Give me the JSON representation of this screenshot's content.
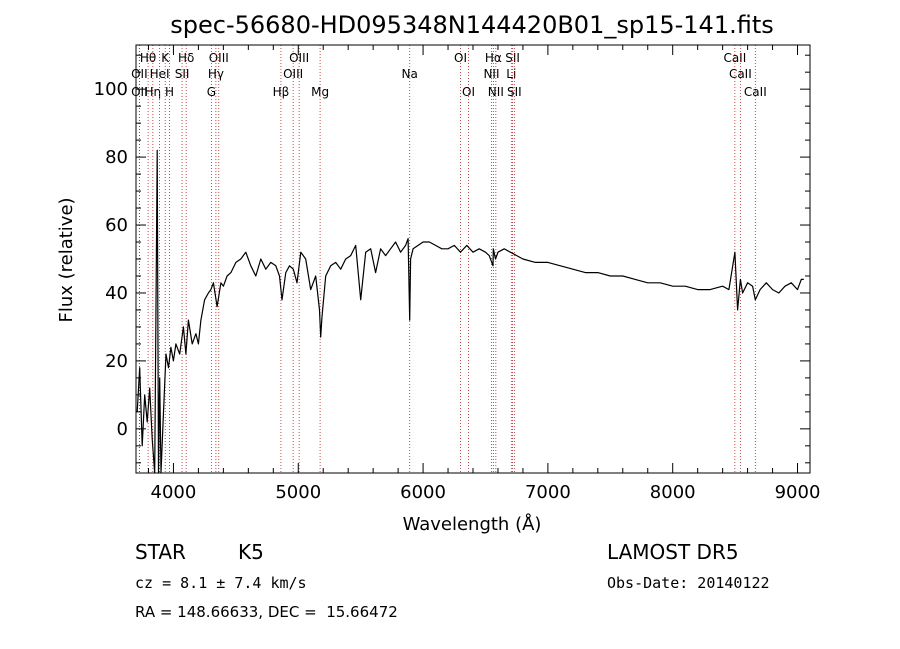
{
  "chart_data": {
    "type": "line",
    "title": "spec-56680-HD095348N144420B01_sp15-141.fits",
    "xlabel": "Wavelength (Å)",
    "ylabel": "Flux (relative)",
    "xlim": [
      3700,
      9100
    ],
    "ylim": [
      -13,
      113
    ],
    "xticks": [
      4000,
      5000,
      6000,
      7000,
      8000,
      9000
    ],
    "yticks": [
      0,
      20,
      40,
      60,
      80,
      100
    ],
    "grid": false,
    "colors": {
      "spectrum": "#000000",
      "lines": "#b22222"
    },
    "series": [
      {
        "x": [
          3710,
          3730,
          3750,
          3770,
          3790,
          3810,
          3830,
          3850,
          3870,
          3880,
          3890,
          3900,
          3920,
          3940,
          3960,
          3980,
          4000,
          4020,
          4050,
          4080,
          4100,
          4120,
          4150,
          4180,
          4200,
          4220,
          4250,
          4280,
          4300,
          4320,
          4350,
          4380,
          4400,
          4430,
          4460,
          4500,
          4540,
          4580,
          4620,
          4660,
          4700,
          4740,
          4780,
          4820,
          4850,
          4870,
          4900,
          4930,
          4960,
          4990,
          5020,
          5060,
          5100,
          5140,
          5170,
          5180,
          5190,
          5220,
          5260,
          5300,
          5340,
          5380,
          5420,
          5460,
          5500,
          5540,
          5580,
          5620,
          5660,
          5700,
          5740,
          5780,
          5820,
          5860,
          5880,
          5893,
          5900,
          5920,
          5960,
          6000,
          6050,
          6100,
          6150,
          6200,
          6250,
          6300,
          6350,
          6400,
          6450,
          6500,
          6530,
          6560,
          6563,
          6580,
          6600,
          6650,
          6700,
          6750,
          6800,
          6900,
          7000,
          7100,
          7200,
          7300,
          7400,
          7500,
          7600,
          7700,
          7800,
          7900,
          8000,
          8100,
          8200,
          8300,
          8400,
          8450,
          8498,
          8520,
          8542,
          8560,
          8600,
          8640,
          8662,
          8700,
          8750,
          8800,
          8850,
          8900,
          8950,
          9000,
          9030,
          9050
        ],
        "y": [
          5,
          18,
          -5,
          10,
          2,
          12,
          -3,
          -13,
          82,
          -13,
          15,
          -13,
          5,
          22,
          18,
          24,
          20,
          25,
          22,
          30,
          22,
          32,
          25,
          28,
          25,
          32,
          38,
          40,
          41,
          43,
          36,
          43,
          42,
          45,
          46,
          49,
          50,
          52,
          48,
          45,
          50,
          47,
          49,
          48,
          45,
          38,
          46,
          48,
          47,
          43,
          52,
          50,
          41,
          45,
          35,
          27,
          33,
          45,
          48,
          49,
          47,
          50,
          51,
          54,
          38,
          52,
          53,
          46,
          53,
          51,
          53,
          55,
          52,
          54,
          56,
          32,
          50,
          53,
          54,
          55,
          55,
          54,
          53,
          53,
          54,
          52,
          54,
          52,
          53,
          52,
          51,
          48,
          53,
          50,
          52,
          53,
          52,
          51,
          50,
          49,
          49,
          48,
          47,
          46,
          46,
          45,
          45,
          44,
          43,
          43,
          42,
          42,
          41,
          41,
          42,
          41,
          52,
          35,
          44,
          40,
          43,
          42,
          38,
          41,
          43,
          41,
          40,
          42,
          43,
          41,
          44,
          44
        ]
      }
    ],
    "spectral_lines": [
      {
        "label": "Hθ",
        "x": 3797,
        "row": 1
      },
      {
        "label": "OII",
        "x": 3727,
        "row": 2
      },
      {
        "label": "OII",
        "x": 3727,
        "row": 3
      },
      {
        "label": "Hη",
        "x": 3835,
        "row": 3
      },
      {
        "label": "K",
        "x": 3934,
        "row": 1
      },
      {
        "label": "HeI",
        "x": 3889,
        "row": 2
      },
      {
        "label": "H",
        "x": 3969,
        "row": 3
      },
      {
        "label": "Hδ",
        "x": 4102,
        "row": 1
      },
      {
        "label": "SII",
        "x": 4069,
        "row": 2
      },
      {
        "label": "OIII",
        "x": 4363,
        "row": 1
      },
      {
        "label": "Hγ",
        "x": 4340,
        "row": 2
      },
      {
        "label": "G",
        "x": 4304,
        "row": 3
      },
      {
        "label": "Hβ",
        "x": 4861,
        "row": 3
      },
      {
        "label": "OIII",
        "x": 5007,
        "row": 1
      },
      {
        "label": "OIII",
        "x": 4959,
        "row": 2
      },
      {
        "label": "Mg",
        "x": 5175,
        "row": 3
      },
      {
        "label": "Na",
        "x": 5893,
        "row": 2
      },
      {
        "label": "OI",
        "x": 6300,
        "row": 1
      },
      {
        "label": "OI",
        "x": 6364,
        "row": 3
      },
      {
        "label": "Hα",
        "x": 6563,
        "row": 1
      },
      {
        "label": "NII",
        "x": 6548,
        "row": 2
      },
      {
        "label": "NII",
        "x": 6583,
        "row": 3
      },
      {
        "label": "SII",
        "x": 6717,
        "row": 1
      },
      {
        "label": "Li",
        "x": 6707,
        "row": 2
      },
      {
        "label": "SII",
        "x": 6731,
        "row": 3
      },
      {
        "label": "CaII",
        "x": 8498,
        "row": 1
      },
      {
        "label": "CaII",
        "x": 8542,
        "row": 2
      },
      {
        "label": "CaII",
        "x": 8662,
        "row": 3
      }
    ]
  },
  "info": {
    "object_class": "STAR",
    "subclass": "K5",
    "survey": "LAMOST DR5",
    "cz": "cz = 8.1 ± 7.4 km/s",
    "obs_date": "Obs-Date: 20140122",
    "coords": "RA = 148.66633, DEC =  15.66472"
  }
}
